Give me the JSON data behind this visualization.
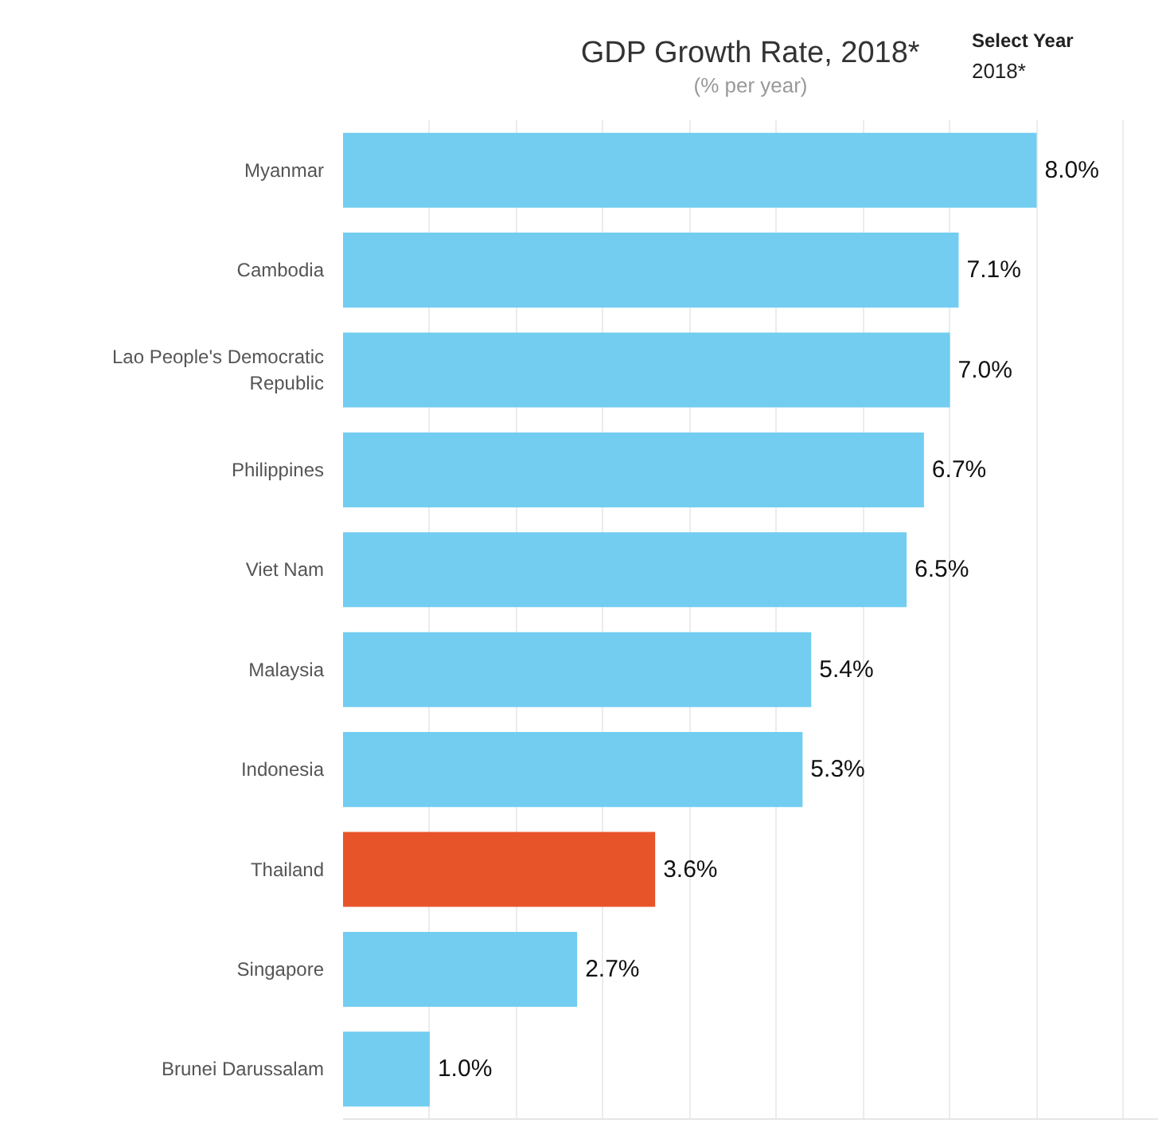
{
  "chart_data": {
    "type": "bar",
    "orientation": "horizontal",
    "title": "GDP Growth Rate, 2018*",
    "subtitle": "(% per year)",
    "annotations": [
      "Select Year",
      "2018*"
    ],
    "categories": [
      "Myanmar",
      "Cambodia",
      "Lao People's Democratic Republic",
      "Philippines",
      "Viet Nam",
      "Malaysia",
      "Indonesia",
      "Thailand",
      "Singapore",
      "Brunei Darussalam"
    ],
    "values": [
      8.0,
      7.1,
      7.0,
      6.7,
      6.5,
      5.4,
      5.3,
      3.6,
      2.7,
      1.0
    ],
    "colors": [
      "#72cdf1",
      "#72cdf1",
      "#72cdf1",
      "#72cdf1",
      "#72cdf1",
      "#72cdf1",
      "#72cdf1",
      "#e8542a",
      "#72cdf1",
      "#72cdf1"
    ],
    "value_labels": [
      "8.0%",
      "7.1%",
      "7.0%",
      "6.7%",
      "6.5%",
      "5.4%",
      "5.3%",
      "3.6%",
      "2.7%",
      "1.0%"
    ],
    "xlim": [
      0,
      9.4
    ],
    "xticks": [
      {
        "value": 1,
        "label": null
      },
      {
        "value": 2,
        "label": null
      },
      {
        "value": 3,
        "label": null
      },
      {
        "value": 4,
        "label": null
      },
      {
        "value": 5,
        "label": null
      },
      {
        "value": 6,
        "label": null
      },
      {
        "value": 7,
        "label": null
      },
      {
        "value": 8,
        "label": null
      },
      {
        "value": 9,
        "label": null
      }
    ],
    "grid": "x",
    "tick_labels": "y"
  }
}
